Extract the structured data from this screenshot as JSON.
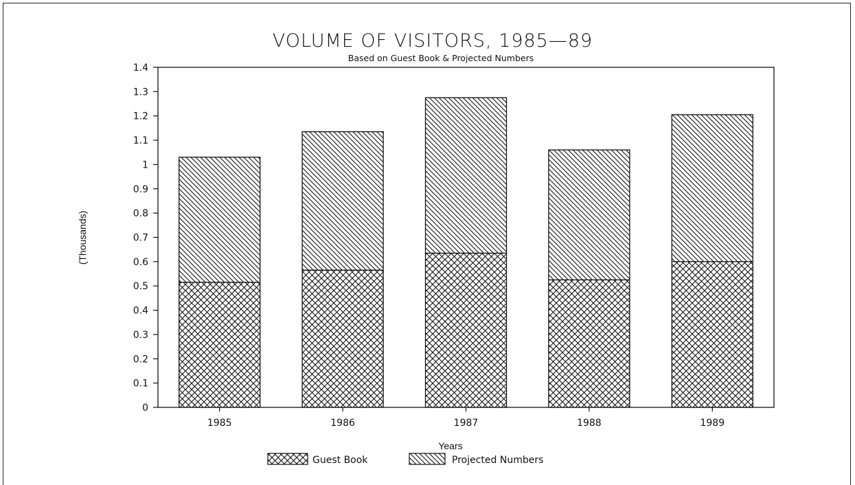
{
  "chart_data": {
    "type": "bar",
    "stacked": true,
    "title": "VOLUME OF VISITORS, 1985—89",
    "subtitle": "Based on Guest Book & Projected Numbers",
    "xlabel": "Years",
    "ylabel": "(Thousands)",
    "categories": [
      "1985",
      "1986",
      "1987",
      "1988",
      "1989"
    ],
    "ylim": [
      0,
      1.4
    ],
    "yticks": [
      "0",
      "0.1",
      "0.2",
      "0.3",
      "0.4",
      "0.5",
      "0.6",
      "0.7",
      "0.8",
      "0.9",
      "1",
      "1.1",
      "1.2",
      "1.3",
      "1.4"
    ],
    "grid": false,
    "legend_position": "bottom",
    "series": [
      {
        "name": "Guest Book",
        "pattern": "crosshatch",
        "values": [
          0.515,
          0.565,
          0.635,
          0.525,
          0.6
        ]
      },
      {
        "name": "Projected Numbers",
        "pattern": "diagonal-hatch",
        "values": [
          0.515,
          0.57,
          0.64,
          0.535,
          0.605
        ]
      }
    ],
    "colors": {
      "ink": "#111111",
      "background": "#ffffff"
    }
  }
}
